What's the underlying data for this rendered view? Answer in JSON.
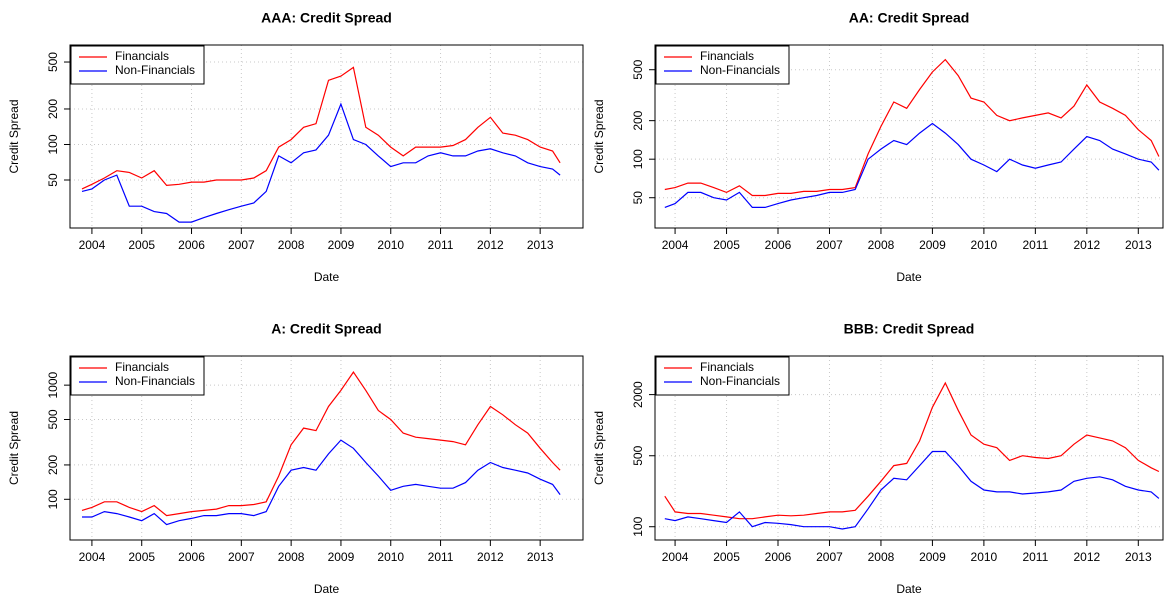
{
  "chart_data": [
    {
      "type": "line",
      "title": "AAA: Credit Spread",
      "x_label": "Date",
      "y_label": "Credit Spread",
      "x": [
        2003.8,
        2004,
        2004.25,
        2004.5,
        2004.75,
        2005,
        2005.25,
        2005.5,
        2005.75,
        2006,
        2006.25,
        2006.5,
        2006.75,
        2007,
        2007.25,
        2007.5,
        2007.75,
        2008,
        2008.25,
        2008.5,
        2008.75,
        2009,
        2009.25,
        2009.5,
        2009.75,
        2010,
        2010.25,
        2010.5,
        2010.75,
        2011,
        2011.25,
        2011.5,
        2011.75,
        2012,
        2012.25,
        2012.5,
        2012.75,
        2013,
        2013.25,
        2013.4
      ],
      "series": [
        {
          "name": "Financials",
          "color": "#ff0000",
          "values": [
            42,
            46,
            52,
            60,
            58,
            52,
            60,
            45,
            46,
            48,
            48,
            50,
            50,
            50,
            52,
            60,
            95,
            110,
            140,
            150,
            350,
            380,
            450,
            140,
            120,
            95,
            80,
            95,
            95,
            95,
            98,
            110,
            140,
            170,
            125,
            120,
            110,
            95,
            88,
            70
          ]
        },
        {
          "name": "Non-Financials",
          "color": "#0000ff",
          "values": [
            40,
            42,
            50,
            55,
            30,
            30,
            27,
            26,
            22,
            22,
            24,
            26,
            28,
            30,
            32,
            40,
            80,
            70,
            85,
            90,
            120,
            220,
            110,
            100,
            80,
            65,
            70,
            70,
            80,
            85,
            80,
            80,
            88,
            92,
            85,
            80,
            70,
            65,
            62,
            55
          ]
        }
      ],
      "xlim": [
        2003.56,
        2013.86
      ],
      "ylim": [
        19.6,
        697
      ],
      "xticks": [
        2004,
        2005,
        2006,
        2007,
        2008,
        2009,
        2010,
        2011,
        2012,
        2013
      ],
      "yticks": [
        50,
        100,
        200,
        500
      ],
      "y_scale": "log",
      "grid": true,
      "legend": "top-left"
    },
    {
      "type": "line",
      "title": "AA: Credit Spread",
      "x_label": "Date",
      "y_label": "Credit Spread",
      "x": [
        2003.8,
        2004,
        2004.25,
        2004.5,
        2004.75,
        2005,
        2005.25,
        2005.5,
        2005.75,
        2006,
        2006.25,
        2006.5,
        2006.75,
        2007,
        2007.25,
        2007.5,
        2007.75,
        2008,
        2008.25,
        2008.5,
        2008.75,
        2009,
        2009.25,
        2009.5,
        2009.75,
        2010,
        2010.25,
        2010.5,
        2010.75,
        2011,
        2011.25,
        2011.5,
        2011.75,
        2012,
        2012.25,
        2012.5,
        2012.75,
        2013,
        2013.25,
        2013.4
      ],
      "series": [
        {
          "name": "Financials",
          "color": "#ff0000",
          "values": [
            58,
            60,
            65,
            65,
            60,
            55,
            62,
            52,
            52,
            54,
            54,
            56,
            56,
            58,
            58,
            60,
            110,
            180,
            280,
            250,
            350,
            480,
            600,
            450,
            300,
            280,
            220,
            200,
            210,
            220,
            230,
            210,
            260,
            380,
            280,
            250,
            220,
            170,
            140,
            105
          ]
        },
        {
          "name": "Non-Financials",
          "color": "#0000ff",
          "values": [
            42,
            45,
            55,
            55,
            50,
            48,
            55,
            42,
            42,
            45,
            48,
            50,
            52,
            55,
            55,
            58,
            100,
            120,
            140,
            130,
            160,
            190,
            160,
            130,
            100,
            90,
            80,
            100,
            90,
            85,
            90,
            95,
            120,
            150,
            140,
            120,
            110,
            100,
            95,
            82
          ]
        }
      ],
      "xlim": [
        2003.61,
        2013.48
      ],
      "ylim": [
        29,
        780
      ],
      "xticks": [
        2004,
        2005,
        2006,
        2007,
        2008,
        2009,
        2010,
        2011,
        2012,
        2013
      ],
      "yticks": [
        50,
        100,
        200,
        500
      ],
      "y_scale": "log",
      "grid": true,
      "legend": "top-left"
    },
    {
      "type": "line",
      "title": "A: Credit Spread",
      "x_label": "Date",
      "y_label": "Credit Spread",
      "x": [
        2003.8,
        2004,
        2004.25,
        2004.5,
        2004.75,
        2005,
        2005.25,
        2005.5,
        2005.75,
        2006,
        2006.25,
        2006.5,
        2006.75,
        2007,
        2007.25,
        2007.5,
        2007.75,
        2008,
        2008.25,
        2008.5,
        2008.75,
        2009,
        2009.25,
        2009.5,
        2009.75,
        2010,
        2010.25,
        2010.5,
        2010.75,
        2011,
        2011.25,
        2011.5,
        2011.75,
        2012,
        2012.25,
        2012.5,
        2012.75,
        2013,
        2013.25,
        2013.4
      ],
      "series": [
        {
          "name": "Financials",
          "color": "#ff0000",
          "values": [
            80,
            85,
            95,
            95,
            85,
            78,
            88,
            72,
            75,
            78,
            80,
            82,
            88,
            88,
            90,
            95,
            160,
            300,
            420,
            400,
            650,
            900,
            1300,
            900,
            600,
            500,
            380,
            350,
            340,
            330,
            320,
            300,
            450,
            650,
            550,
            450,
            380,
            280,
            210,
            180
          ]
        },
        {
          "name": "Non-Financials",
          "color": "#0000ff",
          "values": [
            70,
            70,
            78,
            75,
            70,
            65,
            75,
            60,
            65,
            68,
            72,
            72,
            75,
            75,
            72,
            78,
            130,
            180,
            190,
            180,
            250,
            330,
            280,
            210,
            160,
            120,
            130,
            135,
            130,
            125,
            125,
            140,
            180,
            210,
            190,
            180,
            170,
            150,
            135,
            110
          ]
        }
      ],
      "xlim": [
        2003.56,
        2013.86
      ],
      "ylim": [
        44,
        1800
      ],
      "xticks": [
        2004,
        2005,
        2006,
        2007,
        2008,
        2009,
        2010,
        2011,
        2012,
        2013
      ],
      "yticks": [
        100,
        200,
        500,
        1000
      ],
      "y_scale": "log",
      "grid": true,
      "legend": "top-left"
    },
    {
      "type": "line",
      "title": "BBB: Credit Spread",
      "x_label": "Date",
      "y_label": "Credit Spread",
      "x": [
        2003.8,
        2004,
        2004.25,
        2004.5,
        2004.75,
        2005,
        2005.25,
        2005.5,
        2005.75,
        2006,
        2006.25,
        2006.5,
        2006.75,
        2007,
        2007.25,
        2007.5,
        2007.75,
        2008,
        2008.25,
        2008.5,
        2008.75,
        2009,
        2009.25,
        2009.5,
        2009.75,
        2010,
        2010.25,
        2010.5,
        2010.75,
        2011,
        2011.25,
        2011.5,
        2011.75,
        2012,
        2012.25,
        2012.5,
        2012.75,
        2013,
        2013.25,
        2013.4
      ],
      "series": [
        {
          "name": "Financials",
          "color": "#ff0000",
          "values": [
            200,
            140,
            135,
            135,
            130,
            125,
            120,
            120,
            125,
            130,
            128,
            130,
            135,
            140,
            140,
            145,
            200,
            280,
            400,
            420,
            700,
            1500,
            2600,
            1400,
            800,
            650,
            600,
            450,
            500,
            480,
            470,
            500,
            650,
            800,
            750,
            700,
            600,
            450,
            380,
            350
          ]
        },
        {
          "name": "Non-Financials",
          "color": "#0000ff",
          "values": [
            120,
            115,
            125,
            120,
            115,
            110,
            140,
            100,
            110,
            108,
            105,
            100,
            100,
            100,
            95,
            100,
            150,
            230,
            300,
            290,
            400,
            550,
            550,
            400,
            280,
            230,
            220,
            220,
            210,
            215,
            220,
            230,
            280,
            300,
            310,
            290,
            250,
            230,
            220,
            190
          ]
        }
      ],
      "xlim": [
        2003.61,
        2013.48
      ],
      "ylim": [
        74,
        4800
      ],
      "xticks": [
        2004,
        2005,
        2006,
        2007,
        2008,
        2009,
        2010,
        2011,
        2012,
        2013
      ],
      "yticks": [
        100,
        500,
        2000
      ],
      "y_scale": "log",
      "grid": true,
      "legend": "top-left"
    }
  ]
}
